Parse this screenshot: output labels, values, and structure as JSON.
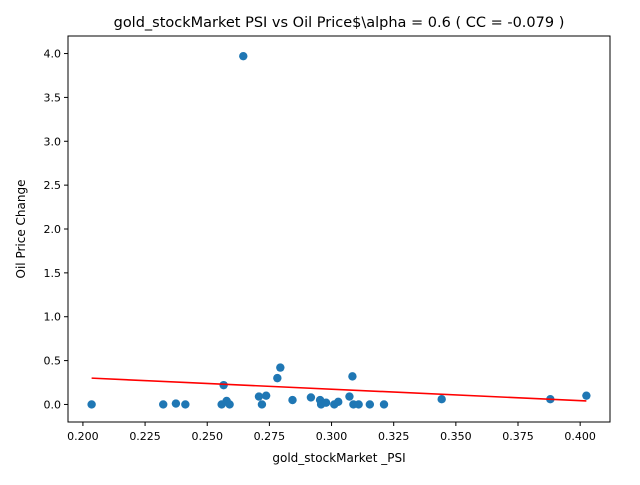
{
  "chart_data": {
    "type": "scatter",
    "title": "gold_stockMarket  PSI vs Oil Price$\\alpha = 0.6 ( CC = -0.079 )",
    "xlabel": "gold_stockMarket _PSI",
    "ylabel": "Oil Price Change",
    "xlim": [
      0.194,
      0.412
    ],
    "ylim": [
      -0.2,
      4.2
    ],
    "x_ticks": [
      0.2,
      0.225,
      0.25,
      0.275,
      0.3,
      0.325,
      0.35,
      0.375,
      0.4
    ],
    "x_tick_labels": [
      "0.200",
      "0.225",
      "0.250",
      "0.275",
      "0.300",
      "0.325",
      "0.350",
      "0.375",
      "0.400"
    ],
    "y_ticks": [
      0.0,
      0.5,
      1.0,
      1.5,
      2.0,
      2.5,
      3.0,
      3.5,
      4.0
    ],
    "y_tick_labels": [
      "0.0",
      "0.5",
      "1.0",
      "1.5",
      "2.0",
      "2.5",
      "3.0",
      "3.5",
      "4.0"
    ],
    "grid": false,
    "point_color": "#1f77b4",
    "fit_line_color": "#ff0000",
    "points": [
      {
        "x": 0.2035,
        "y": 0.0
      },
      {
        "x": 0.2323,
        "y": 0.0
      },
      {
        "x": 0.2374,
        "y": 0.01
      },
      {
        "x": 0.2412,
        "y": 0.0
      },
      {
        "x": 0.2558,
        "y": 0.0
      },
      {
        "x": 0.2566,
        "y": 0.22
      },
      {
        "x": 0.2578,
        "y": 0.04
      },
      {
        "x": 0.259,
        "y": 0.0
      },
      {
        "x": 0.2645,
        "y": 3.97
      },
      {
        "x": 0.2708,
        "y": 0.09
      },
      {
        "x": 0.272,
        "y": 0.0
      },
      {
        "x": 0.2737,
        "y": 0.1
      },
      {
        "x": 0.2782,
        "y": 0.3
      },
      {
        "x": 0.2794,
        "y": 0.42
      },
      {
        "x": 0.2843,
        "y": 0.05
      },
      {
        "x": 0.2917,
        "y": 0.08
      },
      {
        "x": 0.2954,
        "y": 0.05
      },
      {
        "x": 0.2958,
        "y": 0.0
      },
      {
        "x": 0.2978,
        "y": 0.02
      },
      {
        "x": 0.3011,
        "y": 0.0
      },
      {
        "x": 0.3027,
        "y": 0.03
      },
      {
        "x": 0.3072,
        "y": 0.09
      },
      {
        "x": 0.3084,
        "y": 0.32
      },
      {
        "x": 0.3088,
        "y": 0.0
      },
      {
        "x": 0.3109,
        "y": 0.0
      },
      {
        "x": 0.3154,
        "y": 0.0
      },
      {
        "x": 0.3211,
        "y": 0.0
      },
      {
        "x": 0.3443,
        "y": 0.06
      },
      {
        "x": 0.388,
        "y": 0.06
      },
      {
        "x": 0.4025,
        "y": 0.1
      }
    ],
    "fit_line": {
      "x": [
        0.2035,
        0.4025
      ],
      "y": [
        0.3,
        0.04
      ]
    }
  }
}
